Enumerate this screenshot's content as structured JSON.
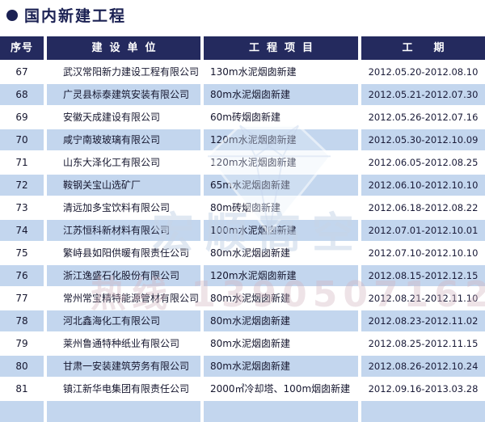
{
  "title": {
    "bullet": "●",
    "text": "国内新建工程"
  },
  "colors": {
    "navy_header": "#242a5e",
    "title_navy": "#1b2153",
    "row_blue": "#c3d6ee",
    "text_dark": "#15162e"
  },
  "table": {
    "headers": [
      {
        "label": "序号"
      },
      {
        "label": "建设单位"
      },
      {
        "label": "工程项目"
      },
      {
        "label": "工期"
      }
    ],
    "rows": [
      {
        "no": "67",
        "company": "武汉常阳新力建设工程有限公司",
        "project": "130m水泥烟囱新建",
        "period": "2012.05.20-2012.08.10"
      },
      {
        "no": "68",
        "company": "广灵县标泰建筑安装有限公司",
        "project": "80m水泥烟囱新建",
        "period": "2012.05.21-2012.07.30"
      },
      {
        "no": "69",
        "company": "安徽天成建设有限公司",
        "project": "60m砖烟囱新建",
        "period": "2012.05.26-2012.07.16"
      },
      {
        "no": "70",
        "company": "咸宁南玻玻璃有限公司",
        "project": "120m水泥烟囱新建",
        "period": "2012.05.30-2012.10.09"
      },
      {
        "no": "71",
        "company": "山东大泽化工有限公司",
        "project": "120m水泥烟囱新建",
        "period": "2012.06.05-2012.08.25"
      },
      {
        "no": "72",
        "company": "鞍钢关宝山选矿厂",
        "project": "65m水泥烟囱新建",
        "period": "2012.06.10-2012.10.10"
      },
      {
        "no": "73",
        "company": "清远加多宝饮料有限公司",
        "project": "80m砖烟囱新建",
        "period": "2012.06.18-2012.08.22"
      },
      {
        "no": "74",
        "company": "江苏恒科新材料有限公司",
        "project": "100m水泥烟囱新建",
        "period": "2012.07.01-2012.10.01"
      },
      {
        "no": "75",
        "company": "繁峙县如阳供暖有限责任公司",
        "project": "80m水泥烟囱新建",
        "period": "2012.07.10-2012.10.10"
      },
      {
        "no": "76",
        "company": "浙江逸盛石化股份有限公司",
        "project": "120m水泥烟囱新建",
        "period": "2012.08.15-2012.12.15"
      },
      {
        "no": "77",
        "company": "常州常宝精特能源管材有限公司",
        "project": "80m水泥烟囱新建",
        "period": "2012.08.21-2012.11.10"
      },
      {
        "no": "78",
        "company": "河北鑫海化工有限公司",
        "project": "80m水泥烟囱新建",
        "period": "2012.08.23-2012.11.02"
      },
      {
        "no": "79",
        "company": "莱州鲁通特种纸业有限公司",
        "project": "80m水泥烟囱新建",
        "period": "2012.08.25-2012.11.15"
      },
      {
        "no": "80",
        "company": "甘肃一安装建筑劳务有限公司",
        "project": "80m水泥烟囱新建",
        "period": "2012.08.26-2012.10.24"
      },
      {
        "no": "81",
        "company": "镇江新华电集团有限责任公司",
        "project": "2000㎡冷却塔、100m烟囱新建",
        "period": "2012.09.16-2013.03.28"
      }
    ]
  },
  "watermark": {
    "brand": "宏顺高空",
    "phone": "热线 13905071628"
  }
}
